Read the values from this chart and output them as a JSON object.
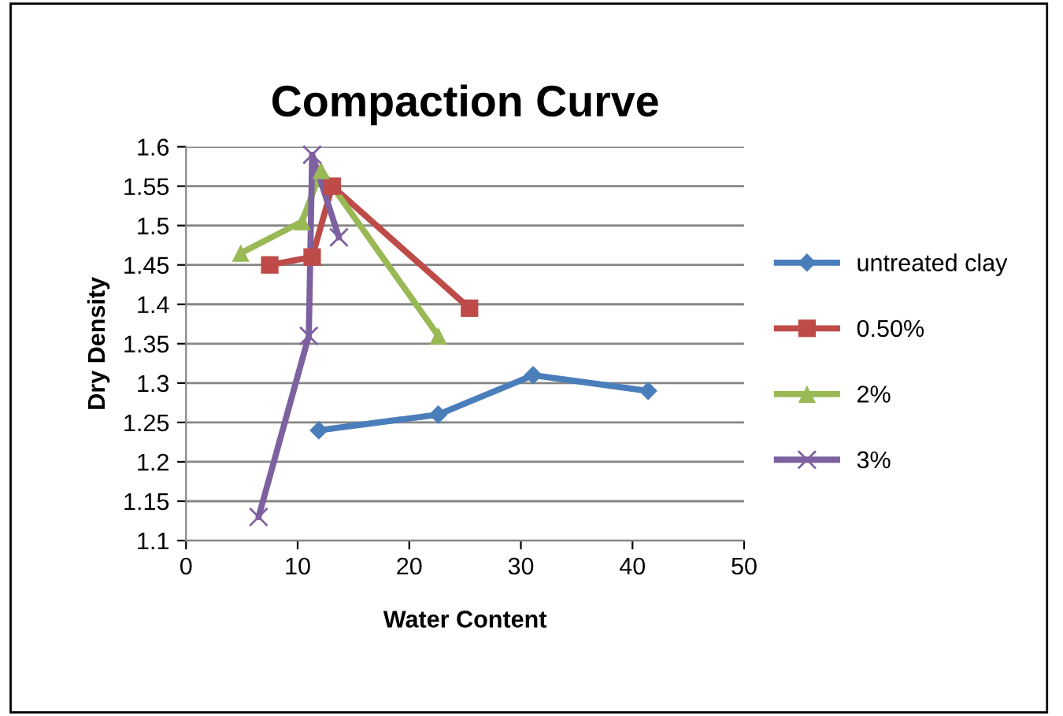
{
  "chart_data": {
    "type": "line",
    "title": "Compaction Curve",
    "xlabel": "Water Content",
    "ylabel": "Dry Density",
    "xlim": [
      0,
      50
    ],
    "xticks": [
      0,
      10,
      20,
      30,
      40,
      50
    ],
    "ylim": [
      1.1,
      1.6
    ],
    "yticks": [
      {
        "value": 1.1,
        "label": "1.1"
      },
      {
        "value": 1.15,
        "label": "1.15"
      },
      {
        "value": 1.2,
        "label": "1.2"
      },
      {
        "value": 1.25,
        "label": "1.25"
      },
      {
        "value": 1.3,
        "label": "1.3"
      },
      {
        "value": 1.35,
        "label": "1.35"
      },
      {
        "value": 1.4,
        "label": "1.4"
      },
      {
        "value": 1.45,
        "label": "1.45"
      },
      {
        "value": 1.5,
        "label": "1.5"
      },
      {
        "value": 1.55,
        "label": "1.55"
      },
      {
        "value": 1.6,
        "label": "1.6"
      }
    ],
    "grid": "y",
    "legend": "right",
    "series": [
      {
        "name": "untreated clay",
        "color": "#4a7ebb",
        "marker": "diamond",
        "x": [
          11.9,
          22.6,
          31.1,
          41.4
        ],
        "values": [
          1.24,
          1.26,
          1.31,
          1.29
        ]
      },
      {
        "name": "0.50%",
        "color": "#be4b48",
        "marker": "square",
        "x": [
          7.5,
          11.3,
          13.1,
          25.4
        ],
        "values": [
          1.45,
          1.46,
          1.55,
          1.395
        ]
      },
      {
        "name": "2%",
        "color": "#98b954",
        "marker": "triangle",
        "x": [
          4.9,
          10.4,
          12.1,
          22.6
        ],
        "values": [
          1.465,
          1.505,
          1.57,
          1.36
        ]
      },
      {
        "name": "3%",
        "color": "#7d60a0",
        "marker": "cross",
        "x": [
          6.5,
          11.0,
          11.3,
          13.7
        ],
        "values": [
          1.13,
          1.36,
          1.59,
          1.485
        ]
      }
    ]
  }
}
